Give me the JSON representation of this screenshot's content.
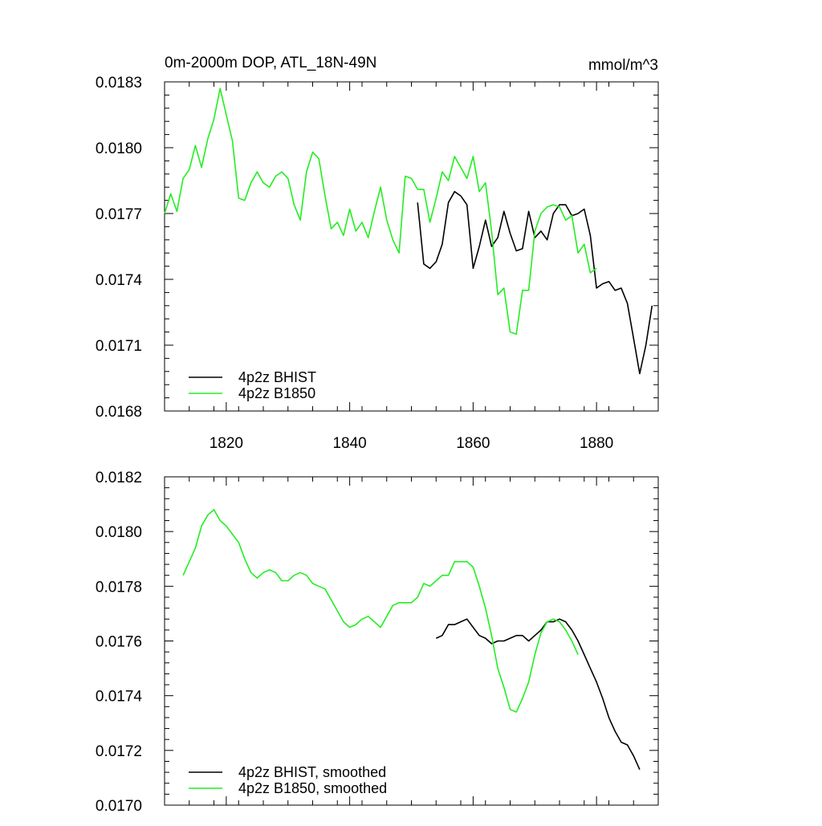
{
  "chart_data": [
    {
      "type": "line",
      "title": "0m-2000m DOP, ATL_18N-49N",
      "units": "mmol/m^3",
      "xlabel": "",
      "ylabel": "",
      "xlim": [
        1810,
        1890
      ],
      "ylim": [
        0.0168,
        0.0183
      ],
      "x_ticks": [
        1820,
        1840,
        1860,
        1880
      ],
      "x_tick_labels": [
        "1820",
        "1840",
        "1860",
        "1880"
      ],
      "y_ticks": [
        0.0168,
        0.0171,
        0.0174,
        0.0177,
        0.018,
        0.0183
      ],
      "y_tick_labels": [
        "0.0168",
        "0.0171",
        "0.0174",
        "0.0177",
        "0.0180",
        "0.0183"
      ],
      "legend_position": "bottom-left",
      "series": [
        {
          "name": "4p2z BHIST",
          "color": "#000000",
          "x": [
            1851,
            1852,
            1853,
            1854,
            1855,
            1856,
            1857,
            1858,
            1859,
            1860,
            1861,
            1862,
            1863,
            1864,
            1865,
            1866,
            1867,
            1868,
            1869,
            1870,
            1871,
            1872,
            1873,
            1874,
            1875,
            1876,
            1877,
            1878,
            1879,
            1880,
            1881,
            1882,
            1883,
            1884,
            1885,
            1886,
            1887,
            1888,
            1889
          ],
          "values": [
            0.01775,
            0.01747,
            0.01745,
            0.01748,
            0.01756,
            0.01775,
            0.0178,
            0.01778,
            0.01774,
            0.01745,
            0.01755,
            0.01767,
            0.01755,
            0.01759,
            0.01771,
            0.01761,
            0.01753,
            0.01754,
            0.01771,
            0.01759,
            0.01762,
            0.01758,
            0.0177,
            0.01774,
            0.01774,
            0.01769,
            0.0177,
            0.01772,
            0.0176,
            0.01736,
            0.01738,
            0.01739,
            0.01735,
            0.01736,
            0.01729,
            0.01713,
            0.01697,
            0.0171,
            0.01728
          ]
        },
        {
          "name": "4p2z B1850",
          "color": "#22ee22",
          "x": [
            1810,
            1811,
            1812,
            1813,
            1814,
            1815,
            1816,
            1817,
            1818,
            1819,
            1820,
            1821,
            1822,
            1823,
            1824,
            1825,
            1826,
            1827,
            1828,
            1829,
            1830,
            1831,
            1832,
            1833,
            1834,
            1835,
            1836,
            1837,
            1838,
            1839,
            1840,
            1841,
            1842,
            1843,
            1844,
            1845,
            1846,
            1847,
            1848,
            1849,
            1850,
            1851,
            1852,
            1853,
            1854,
            1855,
            1856,
            1857,
            1858,
            1859,
            1860,
            1861,
            1862,
            1863,
            1864,
            1865,
            1866,
            1867,
            1868,
            1869,
            1870,
            1871,
            1872,
            1873,
            1874,
            1875,
            1876,
            1877,
            1878,
            1879,
            1880
          ],
          "values": [
            0.0177,
            0.01779,
            0.01771,
            0.01786,
            0.0179,
            0.01801,
            0.01791,
            0.01804,
            0.01813,
            0.01827,
            0.01815,
            0.01803,
            0.01777,
            0.01776,
            0.01784,
            0.01789,
            0.01784,
            0.01782,
            0.01787,
            0.01789,
            0.01786,
            0.01774,
            0.01767,
            0.01789,
            0.01798,
            0.01795,
            0.01778,
            0.01763,
            0.01766,
            0.0176,
            0.01772,
            0.01762,
            0.01766,
            0.01759,
            0.01771,
            0.01782,
            0.01767,
            0.01758,
            0.01752,
            0.01787,
            0.01786,
            0.01781,
            0.01781,
            0.01766,
            0.01777,
            0.01789,
            0.01785,
            0.01796,
            0.01791,
            0.01786,
            0.01796,
            0.0178,
            0.01784,
            0.01762,
            0.01733,
            0.01736,
            0.01716,
            0.01715,
            0.01735,
            0.01735,
            0.01762,
            0.0177,
            0.01773,
            0.01774,
            0.01773,
            0.01767,
            0.01769,
            0.01752,
            0.01756,
            0.01743,
            0.01745
          ]
        }
      ]
    },
    {
      "type": "line",
      "title": "",
      "xlabel": "",
      "ylabel": "",
      "xlim": [
        1810,
        1890
      ],
      "ylim": [
        0.017,
        0.0182
      ],
      "x_ticks": [
        1820,
        1840,
        1860,
        1880
      ],
      "x_tick_labels": [],
      "y_ticks": [
        0.017,
        0.0172,
        0.0174,
        0.0176,
        0.0178,
        0.018,
        0.0182
      ],
      "y_tick_labels": [
        "0.0170",
        "0.0172",
        "0.0174",
        "0.0176",
        "0.0178",
        "0.0180",
        "0.0182"
      ],
      "legend_position": "bottom-left",
      "series": [
        {
          "name": "4p2z BHIST, smoothed",
          "color": "#000000",
          "x": [
            1854,
            1855,
            1856,
            1857,
            1858,
            1859,
            1860,
            1861,
            1862,
            1863,
            1864,
            1865,
            1866,
            1867,
            1868,
            1869,
            1870,
            1871,
            1872,
            1873,
            1874,
            1875,
            1876,
            1877,
            1878,
            1879,
            1880,
            1881,
            1882,
            1883,
            1884,
            1885,
            1886,
            1887
          ],
          "values": [
            0.01761,
            0.01762,
            0.01766,
            0.01766,
            0.01767,
            0.01768,
            0.01765,
            0.01762,
            0.01761,
            0.01759,
            0.0176,
            0.0176,
            0.01761,
            0.01762,
            0.01762,
            0.0176,
            0.01762,
            0.01764,
            0.01767,
            0.01767,
            0.01768,
            0.01767,
            0.01764,
            0.0176,
            0.01755,
            0.0175,
            0.01745,
            0.01739,
            0.01732,
            0.01727,
            0.01723,
            0.01722,
            0.01718,
            0.01713
          ]
        },
        {
          "name": "4p2z B1850, smoothed",
          "color": "#22ee22",
          "x": [
            1813,
            1814,
            1815,
            1816,
            1817,
            1818,
            1819,
            1820,
            1821,
            1822,
            1823,
            1824,
            1825,
            1826,
            1827,
            1828,
            1829,
            1830,
            1831,
            1832,
            1833,
            1834,
            1835,
            1836,
            1837,
            1838,
            1839,
            1840,
            1841,
            1842,
            1843,
            1844,
            1845,
            1846,
            1847,
            1848,
            1849,
            1850,
            1851,
            1852,
            1853,
            1854,
            1855,
            1856,
            1857,
            1858,
            1859,
            1860,
            1861,
            1862,
            1863,
            1864,
            1865,
            1866,
            1867,
            1868,
            1869,
            1870,
            1871,
            1872,
            1873,
            1874,
            1875,
            1876,
            1877
          ],
          "values": [
            0.01784,
            0.01789,
            0.01794,
            0.01802,
            0.01806,
            0.01808,
            0.01804,
            0.01802,
            0.01799,
            0.01796,
            0.0179,
            0.01785,
            0.01783,
            0.01785,
            0.01786,
            0.01785,
            0.01782,
            0.01782,
            0.01784,
            0.01785,
            0.01784,
            0.01781,
            0.0178,
            0.01779,
            0.01775,
            0.01771,
            0.01767,
            0.01765,
            0.01766,
            0.01768,
            0.01769,
            0.01767,
            0.01765,
            0.01769,
            0.01773,
            0.01774,
            0.01774,
            0.01774,
            0.01776,
            0.01781,
            0.0178,
            0.01782,
            0.01784,
            0.01784,
            0.01789,
            0.01789,
            0.01789,
            0.01787,
            0.0178,
            0.01772,
            0.01762,
            0.0175,
            0.01743,
            0.01735,
            0.01734,
            0.01739,
            0.01745,
            0.01755,
            0.01763,
            0.01767,
            0.01768,
            0.01767,
            0.01764,
            0.0176,
            0.01755
          ]
        }
      ]
    }
  ]
}
